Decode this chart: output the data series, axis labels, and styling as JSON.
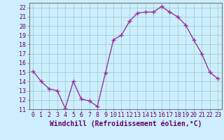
{
  "x": [
    0,
    1,
    2,
    3,
    4,
    5,
    6,
    7,
    8,
    9,
    10,
    11,
    12,
    13,
    14,
    15,
    16,
    17,
    18,
    19,
    20,
    21,
    22,
    23
  ],
  "y": [
    15.1,
    14.0,
    13.2,
    13.0,
    11.1,
    14.0,
    12.1,
    11.9,
    11.3,
    14.9,
    18.5,
    19.0,
    20.5,
    21.4,
    21.5,
    21.5,
    22.1,
    21.5,
    21.0,
    20.1,
    18.5,
    17.0,
    15.0,
    14.3
  ],
  "line_color": "#993399",
  "marker_color": "#993399",
  "bg_color": "#cceeff",
  "grid_color": "#99ccbb",
  "xlabel": "Windchill (Refroidissement éolien,°C)",
  "xlim": [
    -0.5,
    23.5
  ],
  "ylim": [
    11,
    22.5
  ],
  "yticks": [
    11,
    12,
    13,
    14,
    15,
    16,
    17,
    18,
    19,
    20,
    21,
    22
  ],
  "xticks": [
    0,
    1,
    2,
    3,
    4,
    5,
    6,
    7,
    8,
    9,
    10,
    11,
    12,
    13,
    14,
    15,
    16,
    17,
    18,
    19,
    20,
    21,
    22,
    23
  ],
  "xlabel_fontsize": 7.0,
  "tick_fontsize": 6.0,
  "marker": "+",
  "linewidth": 1.0,
  "markersize": 4,
  "spine_color": "#777777"
}
